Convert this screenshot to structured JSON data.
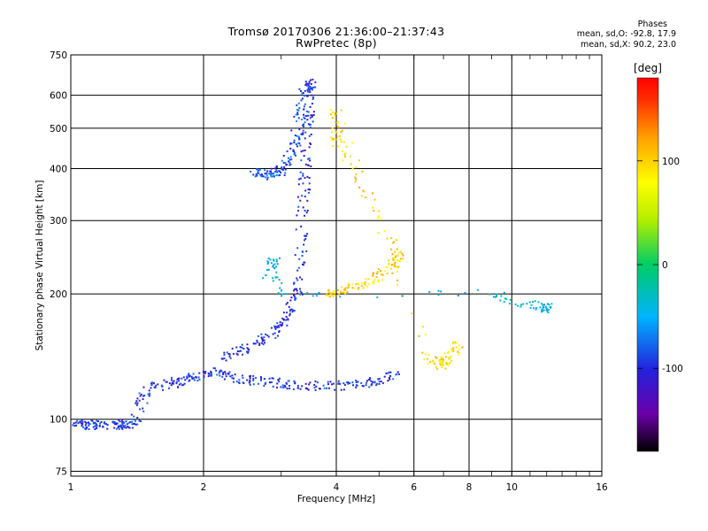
{
  "title_line1": "Tromsø 20170306 21:36:00–21:37:43",
  "title_line2": "RwPretec (8p)",
  "phase_box": {
    "title": "Phases",
    "o_line": "mean, sd,O: -92.8, 17.9",
    "x_line": "mean, sd,X:  90.2, 23.0"
  },
  "colorbar": {
    "unit": "[deg]",
    "tick_labels": [
      "100",
      "0",
      "-100"
    ],
    "ticks": [
      100,
      0,
      -100
    ],
    "range": [
      -180,
      180
    ],
    "colors": [
      "#000000",
      "#6a00a8",
      "#2222dd",
      "#00b4ff",
      "#00cc66",
      "#b4ee00",
      "#ffff00",
      "#ffa000",
      "#ff3000",
      "#ff0000"
    ]
  },
  "chart_data": {
    "type": "scatter",
    "xlabel": "Frequency [MHz]",
    "ylabel": "Stationary phase Virtual Height [km]",
    "xscale": "log2",
    "yscale": "log",
    "xlim": [
      1,
      16
    ],
    "ylim": [
      73,
      750
    ],
    "xticks": [
      1,
      2,
      4,
      6,
      8,
      10,
      16
    ],
    "xtick_labels": [
      "1",
      "2",
      "4",
      "6",
      "8",
      "10",
      "16"
    ],
    "yticks": [
      75,
      100,
      200,
      300,
      400,
      500,
      600,
      750
    ],
    "ytick_labels": [
      "75",
      "100",
      "200",
      "300",
      "400",
      "500",
      "600",
      "750"
    ],
    "grid": true,
    "series": [
      {
        "type": "o-mode low trace",
        "phase_deg": -95,
        "points": [
          [
            1.02,
            97
          ],
          [
            1.1,
            97
          ],
          [
            1.2,
            97
          ],
          [
            1.3,
            97
          ],
          [
            1.4,
            98
          ],
          [
            1.5,
            119
          ],
          [
            1.7,
            122
          ],
          [
            1.9,
            126
          ],
          [
            2.1,
            130
          ],
          [
            2.4,
            125
          ],
          [
            2.8,
            123
          ],
          [
            3.2,
            121
          ],
          [
            3.8,
            120
          ],
          [
            4.6,
            121
          ],
          [
            5.4,
            127
          ]
        ]
      },
      {
        "type": "o-mode F trace",
        "phase_deg": -100,
        "points": [
          [
            2.2,
            140
          ],
          [
            2.5,
            148
          ],
          [
            2.9,
            162
          ],
          [
            3.1,
            180
          ],
          [
            3.3,
            210
          ],
          [
            3.35,
            300
          ],
          [
            3.4,
            400
          ],
          [
            3.45,
            520
          ],
          [
            3.5,
            640
          ]
        ]
      },
      {
        "type": "upper F trace",
        "phase_deg": -85,
        "points": [
          [
            2.6,
            390
          ],
          [
            2.8,
            385
          ],
          [
            3.0,
            395
          ],
          [
            3.2,
            440
          ],
          [
            3.3,
            520
          ],
          [
            3.4,
            620
          ]
        ]
      },
      {
        "type": "x-mode trace",
        "phase_deg": 95,
        "points": [
          [
            3.8,
            200
          ],
          [
            4.2,
            205
          ],
          [
            4.8,
            215
          ],
          [
            5.4,
            235
          ],
          [
            5.6,
            250
          ],
          [
            4.0,
            460
          ],
          [
            4.0,
            560
          ],
          [
            6.5,
            140
          ],
          [
            7.0,
            135
          ],
          [
            7.5,
            150
          ]
        ]
      },
      {
        "type": "scattered echoes",
        "phase_deg": -40,
        "points": [
          [
            2.7,
            220
          ],
          [
            2.9,
            240
          ],
          [
            3.0,
            200
          ],
          [
            9.0,
            200
          ],
          [
            10.5,
            190
          ],
          [
            12.0,
            185
          ]
        ]
      }
    ]
  }
}
